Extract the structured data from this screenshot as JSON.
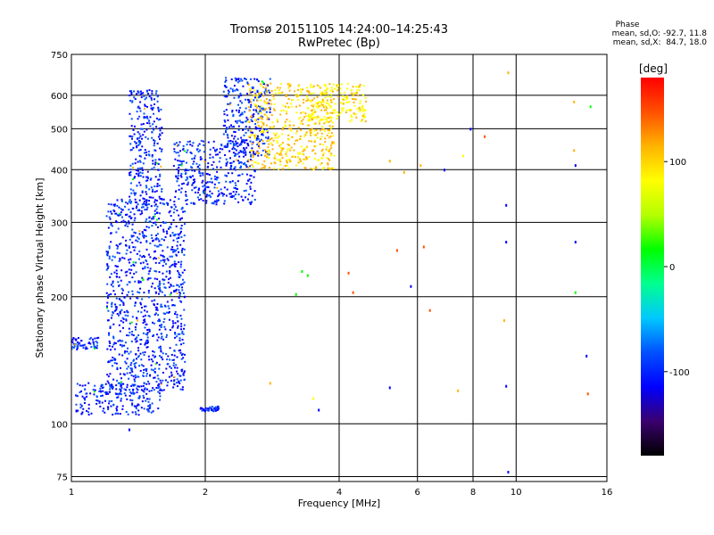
{
  "header": {
    "title_line1": "Tromsø 20151105 14:24:00–14:25:43",
    "title_line2": "RwPretec (Bp)",
    "phase_title": "Phase",
    "phase_o": "mean, sd,O: -92.7, 11.8",
    "phase_x": "mean, sd,X:  84.7, 18.0"
  },
  "chart_data": {
    "type": "scatter",
    "xlabel": "Frequency [MHz]",
    "ylabel": "Stationary phase Virtual Height [km]",
    "xscale": "log",
    "yscale": "log",
    "xlim": [
      1,
      16
    ],
    "ylim": [
      73,
      750
    ],
    "x_ticks": [
      1,
      2,
      4,
      6,
      8,
      10,
      16
    ],
    "x_tick_labels": [
      "1",
      "2",
      "4",
      "6",
      "8",
      "10",
      "16"
    ],
    "y_ticks": [
      75,
      100,
      200,
      300,
      400,
      500,
      600,
      750
    ],
    "y_tick_labels": [
      "75",
      "100",
      "200",
      "300",
      "400",
      "500",
      "600",
      "750"
    ],
    "grid": true,
    "colorbar": {
      "label": "[deg]",
      "range": [
        -180,
        180
      ],
      "ticks": [
        -100,
        0,
        100
      ],
      "tick_labels": [
        "-100",
        "0",
        "100"
      ],
      "colors": [
        "#000000",
        "#3a006e",
        "#0000ff",
        "#0050ff",
        "#00c8ff",
        "#00ff90",
        "#00ff00",
        "#b4ff00",
        "#ffff00",
        "#ffb400",
        "#ff5000",
        "#ff0000"
      ]
    },
    "clusters": [
      {
        "name": "o-trace low band",
        "x": [
          1.02,
          1.6
        ],
        "y": [
          105,
          125
        ],
        "phase": -100
      },
      {
        "name": "o-trace steep rise",
        "x": [
          1.2,
          1.8
        ],
        "y": [
          120,
          340
        ],
        "phase": -100
      },
      {
        "name": "o-trace upper column",
        "x": [
          1.35,
          1.6
        ],
        "y": [
          330,
          620
        ],
        "phase": -100
      },
      {
        "name": "F-layer o-trace",
        "x": [
          1.7,
          2.6
        ],
        "y": [
          330,
          470
        ],
        "phase": -100
      },
      {
        "name": "o-trace cusp",
        "x": [
          2.2,
          2.8
        ],
        "y": [
          430,
          660
        ],
        "phase": -100
      },
      {
        "name": "x-trace",
        "x": [
          2.5,
          3.9
        ],
        "y": [
          400,
          640
        ],
        "phase": 100
      },
      {
        "name": "x-trace upper",
        "x": [
          3.4,
          4.6
        ],
        "y": [
          520,
          640
        ],
        "phase": 90
      },
      {
        "name": "E-layer echo",
        "x": [
          1.95,
          2.15
        ],
        "y": [
          107,
          110
        ],
        "phase": -100
      },
      {
        "name": "low spread",
        "x": [
          1.0,
          1.15
        ],
        "y": [
          150,
          160
        ],
        "phase": -100
      }
    ],
    "sparse_points": [
      {
        "x": 5.6,
        "y": 395,
        "phase": 100
      },
      {
        "x": 6.1,
        "y": 410,
        "phase": 100
      },
      {
        "x": 6.9,
        "y": 400,
        "phase": -100
      },
      {
        "x": 7.6,
        "y": 432,
        "phase": 90
      },
      {
        "x": 7.9,
        "y": 500,
        "phase": -100
      },
      {
        "x": 8.5,
        "y": 480,
        "phase": 150
      },
      {
        "x": 9.5,
        "y": 330,
        "phase": -100
      },
      {
        "x": 9.6,
        "y": 680,
        "phase": 100
      },
      {
        "x": 13.5,
        "y": 580,
        "phase": 110
      },
      {
        "x": 14.7,
        "y": 565,
        "phase": 30
      },
      {
        "x": 13.6,
        "y": 270,
        "phase": -100
      },
      {
        "x": 13.6,
        "y": 410,
        "phase": -100
      },
      {
        "x": 13.6,
        "y": 205,
        "phase": 20
      },
      {
        "x": 13.5,
        "y": 445,
        "phase": 100
      },
      {
        "x": 14.4,
        "y": 145,
        "phase": -100
      },
      {
        "x": 14.5,
        "y": 118,
        "phase": 160
      },
      {
        "x": 9.5,
        "y": 270,
        "phase": -100
      },
      {
        "x": 9.4,
        "y": 176,
        "phase": 100
      },
      {
        "x": 9.5,
        "y": 123,
        "phase": -100
      },
      {
        "x": 9.6,
        "y": 77,
        "phase": -100
      },
      {
        "x": 7.4,
        "y": 120,
        "phase": 100
      },
      {
        "x": 6.4,
        "y": 186,
        "phase": 160
      },
      {
        "x": 5.2,
        "y": 122,
        "phase": -100
      },
      {
        "x": 3.5,
        "y": 115,
        "phase": 90
      },
      {
        "x": 3.6,
        "y": 108,
        "phase": -100
      },
      {
        "x": 4.3,
        "y": 205,
        "phase": 160
      },
      {
        "x": 4.2,
        "y": 228,
        "phase": 150
      },
      {
        "x": 5.4,
        "y": 258,
        "phase": 160
      },
      {
        "x": 6.2,
        "y": 263,
        "phase": 160
      },
      {
        "x": 5.8,
        "y": 212,
        "phase": -100
      },
      {
        "x": 3.3,
        "y": 230,
        "phase": 10
      },
      {
        "x": 3.4,
        "y": 225,
        "phase": 0
      },
      {
        "x": 3.2,
        "y": 203,
        "phase": 20
      },
      {
        "x": 2.8,
        "y": 125,
        "phase": 100
      },
      {
        "x": 1.35,
        "y": 97,
        "phase": -100
      },
      {
        "x": 1.45,
        "y": 220,
        "phase": 0
      },
      {
        "x": 1.55,
        "y": 205,
        "phase": -100
      },
      {
        "x": 5.2,
        "y": 420,
        "phase": 100
      }
    ]
  }
}
